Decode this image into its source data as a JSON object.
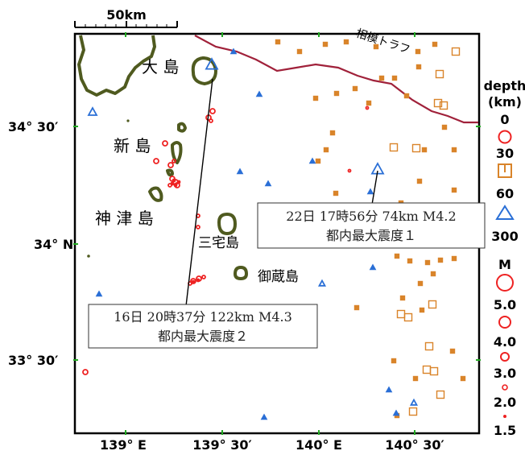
{
  "scale_bar": {
    "label": "50km"
  },
  "trench_label": "相模トラフ",
  "islands": [
    "大 島",
    "新 島",
    "神 津 島",
    "三宅島",
    "御蔵島"
  ],
  "lat_labels": [
    "34° 30′",
    "34° N",
    "33° 30′"
  ],
  "lon_labels": [
    "139° E",
    "139° 30′",
    "140° E",
    "140° 30′"
  ],
  "legend": {
    "depth_title": [
      "depth",
      "(km)"
    ],
    "depth_values": [
      "0",
      "30",
      "60",
      "300"
    ],
    "mag_title": "M",
    "mag_values": [
      "5.0",
      "4.0",
      "3.0",
      "2.0",
      "1.5"
    ]
  },
  "callouts": [
    {
      "line1": "22日 17時56分 74km M4.2",
      "line2": "都内最大震度１"
    },
    {
      "line1": "16日 20時37分 122km M4.3",
      "line2": "都内最大震度２"
    }
  ],
  "colors": {
    "shallow": "#ee2222",
    "intermediate": "#d9842a",
    "deep": "#2a6fd6",
    "coast": "#4f5a1f",
    "trench": "#a0213a",
    "tick_green": "#22aa22"
  },
  "icons": {
    "shallow": "red-circle-icon",
    "intermediate": "orange-square-icon",
    "deep": "blue-triangle-icon"
  }
}
